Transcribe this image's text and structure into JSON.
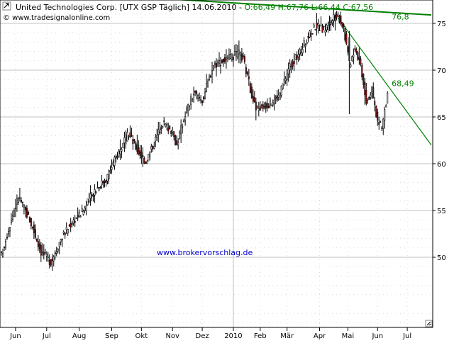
{
  "header": {
    "title_prefix": "United Technologies Corp. [UTX GSP  Täglich] 14.06.2010 - ",
    "ohlc": "O:66,49 H:67,76 L:66,44 C:67,56",
    "source_label": "© www.tradesignalonline.com"
  },
  "watermark": "www.brokervorschlag.de",
  "colors": {
    "up_candle": "#ffffff",
    "down_candle": "#a01010",
    "candle_outline": "#000000",
    "trendline": "#008000",
    "ohlc_text": "#008000",
    "watermark": "#0000cc",
    "grid": "#c0c0c0"
  },
  "chart_data": {
    "type": "candlestick",
    "ylim": [
      42.5,
      77.5
    ],
    "y_ticks": [
      50,
      55,
      60,
      65,
      70,
      75
    ],
    "y_tick_labels": [
      "50",
      "55",
      "60",
      "65",
      "70",
      "75"
    ],
    "x_ticks": [
      "Jun",
      "Jul",
      "Aug",
      "Sep",
      "Okt",
      "Nov",
      "Dez",
      "2010",
      "Feb",
      "Mär",
      "Apr",
      "Mai",
      "Jun",
      "Jul"
    ],
    "x_tick_index": [
      10,
      32,
      55,
      78,
      99,
      121,
      142,
      164,
      183,
      202,
      225,
      245,
      266,
      287
    ],
    "price_path": [
      [
        0,
        50.2
      ],
      [
        6,
        53.6
      ],
      [
        12,
        56.5
      ],
      [
        20,
        54.0
      ],
      [
        28,
        50.6
      ],
      [
        35,
        49.5
      ],
      [
        42,
        52.0
      ],
      [
        50,
        53.8
      ],
      [
        58,
        55.0
      ],
      [
        66,
        57.2
      ],
      [
        74,
        58.4
      ],
      [
        82,
        61.0
      ],
      [
        90,
        63.2
      ],
      [
        96,
        61.5
      ],
      [
        102,
        60.2
      ],
      [
        106,
        61.6
      ],
      [
        114,
        64.4
      ],
      [
        120,
        63.6
      ],
      [
        124,
        62.0
      ],
      [
        130,
        65.4
      ],
      [
        136,
        67.5
      ],
      [
        142,
        66.8
      ],
      [
        150,
        70.6
      ],
      [
        155,
        70.9
      ],
      [
        162,
        71.3
      ],
      [
        168,
        71.8
      ],
      [
        171,
        71.2
      ],
      [
        176,
        68.0
      ],
      [
        180,
        65.8
      ],
      [
        186,
        66.2
      ],
      [
        190,
        66.5
      ],
      [
        196,
        67.2
      ],
      [
        204,
        70.5
      ],
      [
        210,
        71.6
      ],
      [
        216,
        73.3
      ],
      [
        222,
        74.8
      ],
      [
        228,
        74.3
      ],
      [
        234,
        75.4
      ],
      [
        238,
        75.9
      ],
      [
        242,
        74.6
      ],
      [
        246,
        70.5
      ],
      [
        250,
        72.5
      ],
      [
        254,
        70.6
      ],
      [
        258,
        66.8
      ],
      [
        262,
        67.8
      ],
      [
        266,
        64.5
      ],
      [
        269,
        63.9
      ],
      [
        273,
        67.56
      ]
    ],
    "special_candles": [
      {
        "index": 246,
        "open": 73.5,
        "high": 74.2,
        "low": 65.3,
        "close": 71.0
      }
    ],
    "trendlines": [
      {
        "from": [
          0,
          78.7
        ],
        "to": [
          304,
          75.9
        ],
        "label": "76,8",
        "label_at": [
          276,
          75.4
        ]
      },
      {
        "from": [
          238,
          75.6
        ],
        "to": [
          304,
          62.0
        ],
        "label": "68,49",
        "label_at": [
          276,
          68.3
        ]
      }
    ]
  }
}
